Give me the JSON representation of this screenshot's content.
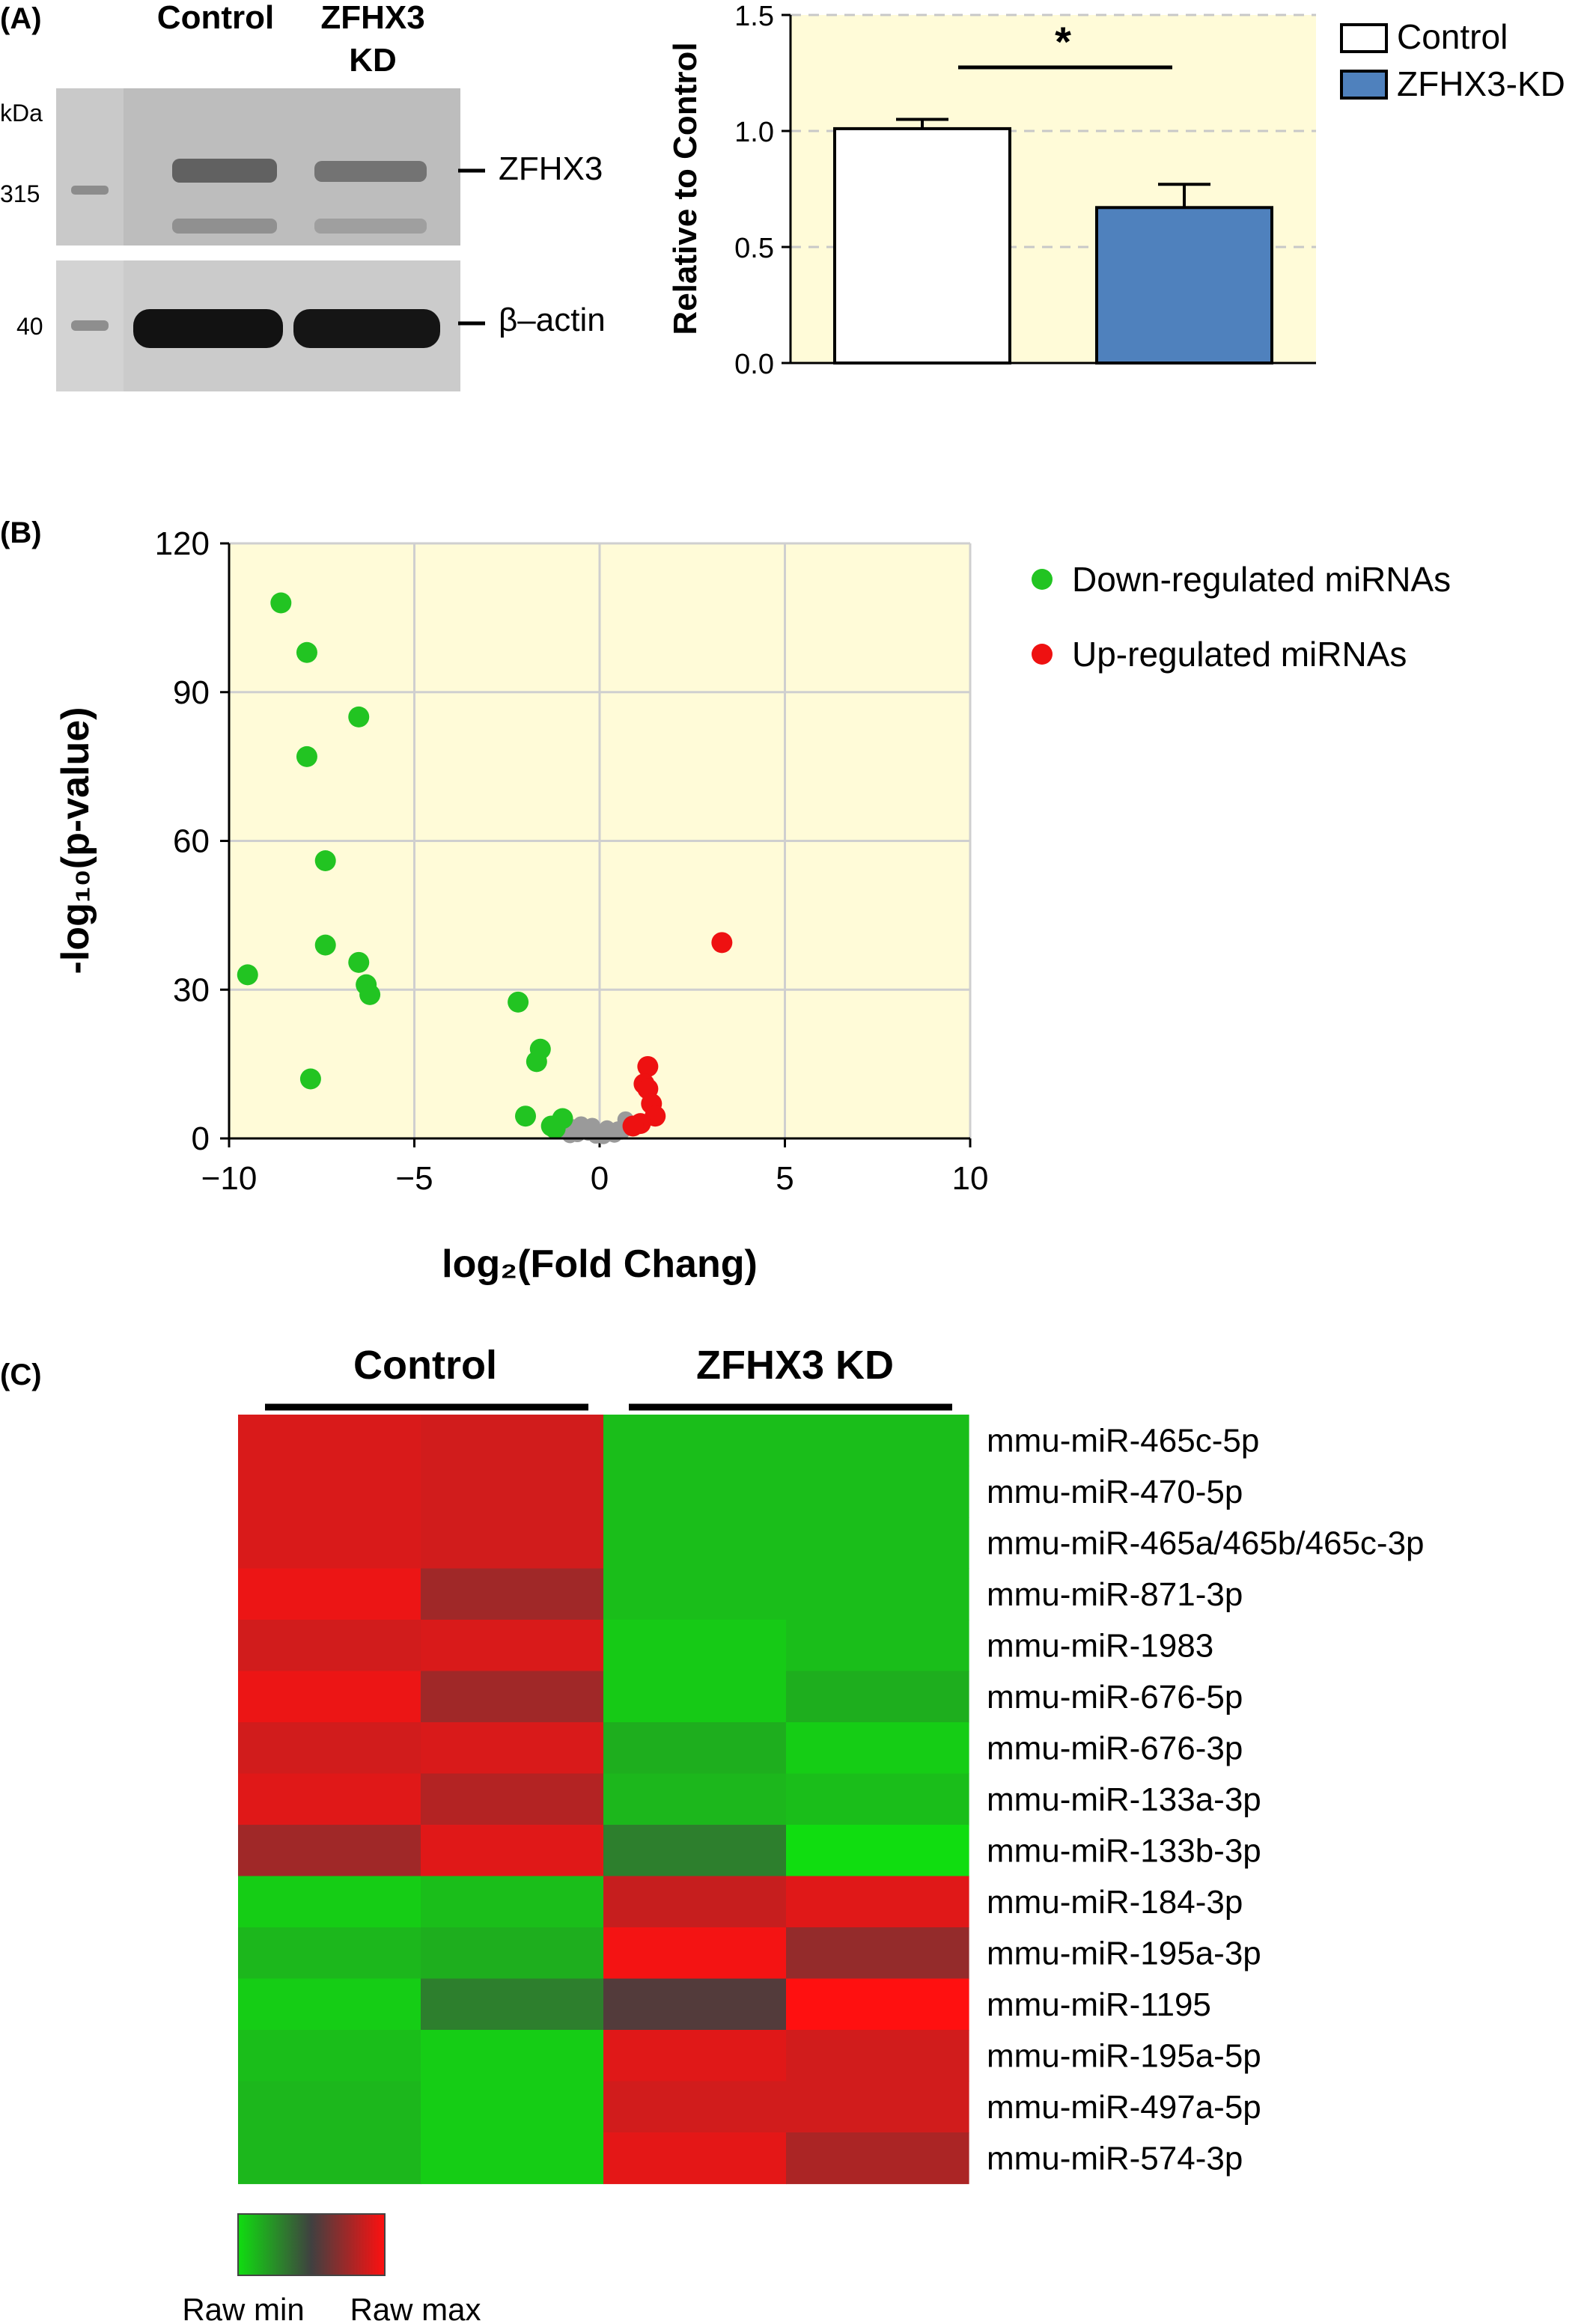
{
  "panel_labels": {
    "a": "(A)",
    "b": "(B)",
    "c": "(C)"
  },
  "colors": {
    "plot_bg": "#fffbd8",
    "control_bar": "#ffffff",
    "kd_bar": "#4f81bd",
    "down": "#22c422",
    "up": "#ee1111",
    "neutral": "#9a9a9a",
    "heat_min": "#10dd10",
    "heat_mid": "#404040",
    "heat_max": "#ff1010"
  },
  "blot": {
    "lane_headers": {
      "control": "Control",
      "kd_line1": "ZFHX3",
      "kd_line2": "KD"
    },
    "kda_label": "kDa",
    "marker_315": "315",
    "marker_40": "40",
    "band_top": "ZFHX3",
    "band_bottom": "β–actin"
  },
  "chart_data": [
    {
      "type": "bar",
      "ylabel": "Relative to Control",
      "ylim": [
        0,
        1.5
      ],
      "yticks": [
        "0.0",
        "0.5",
        "1.0",
        "1.5"
      ],
      "grid": true,
      "legend_position": "top-right",
      "categories": [
        "Control",
        "ZFHX3-KD"
      ],
      "values": [
        1.01,
        0.67
      ],
      "errors": [
        0.04,
        0.1
      ],
      "significance": "*"
    },
    {
      "type": "scatter",
      "xlabel": "log₂(Fold Chang)",
      "ylabel": "-log₁₀(p-value)",
      "xlim": [
        -10,
        10
      ],
      "ylim": [
        0,
        120
      ],
      "xticks": [
        "−10",
        "−5",
        "0",
        "5",
        "10"
      ],
      "yticks": [
        "0",
        "30",
        "60",
        "90",
        "120"
      ],
      "grid": true,
      "legend_position": "top-right",
      "series": [
        {
          "name": "Down-regulated miRNAs",
          "points": [
            [
              -8.6,
              108
            ],
            [
              -7.9,
              98
            ],
            [
              -6.5,
              85
            ],
            [
              -7.9,
              77
            ],
            [
              -7.4,
              56
            ],
            [
              -7.4,
              39
            ],
            [
              -6.5,
              35.5
            ],
            [
              -6.3,
              31
            ],
            [
              -6.2,
              29
            ],
            [
              -9.5,
              33
            ],
            [
              -7.8,
              12
            ],
            [
              -2.2,
              27.5
            ],
            [
              -1.6,
              18
            ],
            [
              -1.7,
              15.5
            ],
            [
              -1.0,
              4
            ],
            [
              -1.3,
              2.5
            ],
            [
              -1.2,
              2
            ],
            [
              -2.0,
              4.5
            ]
          ]
        },
        {
          "name": "Up-regulated miRNAs",
          "points": [
            [
              3.3,
              39.5
            ],
            [
              1.3,
              14.5
            ],
            [
              1.2,
              11
            ],
            [
              1.3,
              10
            ],
            [
              1.4,
              7
            ],
            [
              1.5,
              4.5
            ],
            [
              1.1,
              3
            ],
            [
              0.9,
              2.5
            ]
          ]
        },
        {
          "name": "",
          "points": [
            [
              -0.9,
              1.5
            ],
            [
              -0.7,
              2.2
            ],
            [
              -0.5,
              2.8
            ],
            [
              -0.3,
              1.2
            ],
            [
              -0.1,
              0.6
            ],
            [
              0.1,
              0.5
            ],
            [
              0.3,
              1.0
            ],
            [
              0.5,
              1.8
            ],
            [
              0.7,
              3.8
            ],
            [
              0.8,
              2.2
            ],
            [
              -0.6,
              0.9
            ],
            [
              0.2,
              2.0
            ],
            [
              -0.2,
              2.5
            ],
            [
              0.4,
              0.8
            ],
            [
              0.6,
              1.4
            ],
            [
              -0.4,
              1.7
            ],
            [
              0.0,
              1.1
            ],
            [
              -0.8,
              0.7
            ]
          ]
        }
      ]
    },
    {
      "type": "heatmap",
      "column_groups": [
        "Control",
        "ZFHX3 KD"
      ],
      "columns_per_group": 2,
      "rows": [
        "mmu-miR-465c-5p",
        "mmu-miR-470-5p",
        "mmu-miR-465a/465b/465c-3p",
        "mmu-miR-871-3p",
        "mmu-miR-1983",
        "mmu-miR-676-5p",
        "mmu-miR-676-3p",
        "mmu-miR-133a-3p",
        "mmu-miR-133b-3p",
        "mmu-miR-184-3p",
        "mmu-miR-195a-3p",
        "mmu-miR-1195",
        "mmu-miR-195a-5p",
        "mmu-miR-497a-5p",
        "mmu-miR-574-3p"
      ],
      "values": [
        [
          0.9,
          0.88,
          0.1,
          0.1
        ],
        [
          0.9,
          0.88,
          0.1,
          0.1
        ],
        [
          0.9,
          0.88,
          0.1,
          0.1
        ],
        [
          0.95,
          0.75,
          0.1,
          0.1
        ],
        [
          0.88,
          0.9,
          0.06,
          0.1
        ],
        [
          0.95,
          0.75,
          0.06,
          0.15
        ],
        [
          0.88,
          0.9,
          0.15,
          0.05
        ],
        [
          0.92,
          0.8,
          0.12,
          0.1
        ],
        [
          0.75,
          0.92,
          0.3,
          0.0
        ],
        [
          0.05,
          0.1,
          0.85,
          0.92
        ],
        [
          0.12,
          0.15,
          0.97,
          0.72
        ],
        [
          0.05,
          0.3,
          0.55,
          1.0
        ],
        [
          0.1,
          0.05,
          0.92,
          0.88
        ],
        [
          0.12,
          0.05,
          0.88,
          0.88
        ],
        [
          0.12,
          0.05,
          0.93,
          0.78
        ]
      ],
      "colorbar_labels": [
        "Raw min",
        "Raw max"
      ]
    }
  ]
}
